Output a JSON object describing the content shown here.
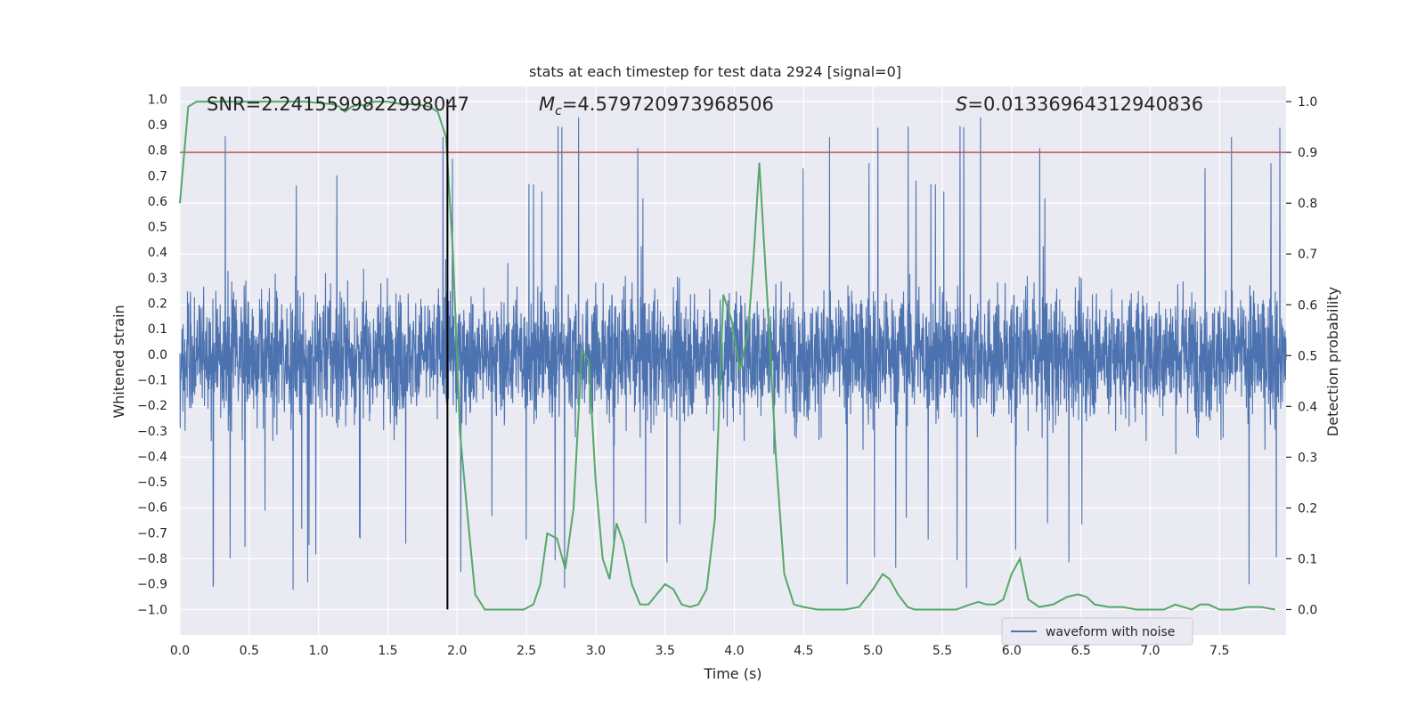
{
  "chart_data": {
    "type": "line",
    "title": "stats at each timestep for test data 2924 [signal=0]",
    "xlabel": "Time (s)",
    "ylabel_left": "Whitened strain",
    "ylabel_right": "Detection probability",
    "xlim": [
      0.0,
      7.98
    ],
    "ylim_left": [
      -1.1,
      1.05
    ],
    "ylim_right": [
      -0.05,
      1.03
    ],
    "x_ticks": [
      "0.0",
      "0.5",
      "1.0",
      "1.5",
      "2.0",
      "2.5",
      "3.0",
      "3.5",
      "4.0",
      "4.5",
      "5.0",
      "5.5",
      "6.0",
      "6.5",
      "7.0",
      "7.5"
    ],
    "x_tick_values": [
      0.0,
      0.5,
      1.0,
      1.5,
      2.0,
      2.5,
      3.0,
      3.5,
      4.0,
      4.5,
      5.0,
      5.5,
      6.0,
      6.5,
      7.0,
      7.5
    ],
    "y_left_ticks": [
      "1.0",
      "0.9",
      "0.8",
      "0.7",
      "0.6",
      "0.5",
      "0.4",
      "0.3",
      "0.2",
      "0.1",
      "0.0",
      "−0.1",
      "−0.2",
      "−0.3",
      "−0.4",
      "−0.5",
      "−0.6",
      "−0.7",
      "−0.8",
      "−0.9",
      "−1.0"
    ],
    "y_left_tick_values": [
      1.0,
      0.9,
      0.8,
      0.7,
      0.6,
      0.5,
      0.4,
      0.3,
      0.2,
      0.1,
      0.0,
      -0.1,
      -0.2,
      -0.3,
      -0.4,
      -0.5,
      -0.6,
      -0.7,
      -0.8,
      -0.9,
      -1.0
    ],
    "y_right_ticks": [
      "1.0",
      "0.9",
      "0.8",
      "0.7",
      "0.6",
      "0.5",
      "0.4",
      "0.3",
      "0.2",
      "0.1",
      "0.0"
    ],
    "y_right_tick_values": [
      1.0,
      0.9,
      0.8,
      0.7,
      0.6,
      0.5,
      0.4,
      0.3,
      0.2,
      0.1,
      0.0
    ],
    "annotations": {
      "snr": "SNR=2.2415599822998047",
      "mc_symbol": "M",
      "mc_subscript": "c",
      "mc_value": "=4.579720973968506",
      "s_symbol": "S",
      "s_value": "=0.01336964312940836"
    },
    "threshold_right": 0.9,
    "vline_x": 1.93,
    "waveform": {
      "name": "waveform with noise",
      "color": "#4c72b0",
      "typical_amplitude": 0.38,
      "max_peak": 0.98,
      "min_peak": -1.0
    },
    "probability": {
      "color": "#55a868",
      "x": [
        0.0,
        0.06,
        0.12,
        0.2,
        0.3,
        0.5,
        0.7,
        0.9,
        1.1,
        1.15,
        1.19,
        1.24,
        1.3,
        1.34,
        1.4,
        1.5,
        1.6,
        1.7,
        1.8,
        1.86,
        1.92,
        1.97,
        2.02,
        2.07,
        2.13,
        2.2,
        2.27,
        2.35,
        2.42,
        2.48,
        2.55,
        2.6,
        2.65,
        2.72,
        2.78,
        2.84,
        2.9,
        2.95,
        3.0,
        3.05,
        3.1,
        3.15,
        3.2,
        3.26,
        3.32,
        3.38,
        3.44,
        3.5,
        3.56,
        3.62,
        3.68,
        3.74,
        3.8,
        3.86,
        3.92,
        3.98,
        4.04,
        4.1,
        4.14,
        4.18,
        4.24,
        4.3,
        4.36,
        4.43,
        4.5,
        4.6,
        4.7,
        4.8,
        4.9,
        5.0,
        5.07,
        5.12,
        5.18,
        5.25,
        5.3,
        5.4,
        5.5,
        5.6,
        5.7,
        5.76,
        5.82,
        5.88,
        5.94,
        6.0,
        6.06,
        6.12,
        6.2,
        6.3,
        6.4,
        6.48,
        6.54,
        6.6,
        6.7,
        6.8,
        6.9,
        7.0,
        7.1,
        7.18,
        7.24,
        7.3,
        7.36,
        7.42,
        7.5,
        7.6,
        7.7,
        7.8,
        7.9
      ],
      "y": [
        0.8,
        0.99,
        1.0,
        1.0,
        1.0,
        1.0,
        1.0,
        1.0,
        0.995,
        0.99,
        0.98,
        0.99,
        0.995,
        0.99,
        1.0,
        1.0,
        0.995,
        0.995,
        0.99,
        0.98,
        0.93,
        0.7,
        0.35,
        0.2,
        0.03,
        0.0,
        0.0,
        0.0,
        0.0,
        0.0,
        0.01,
        0.05,
        0.15,
        0.14,
        0.08,
        0.2,
        0.51,
        0.49,
        0.25,
        0.1,
        0.06,
        0.17,
        0.13,
        0.05,
        0.01,
        0.01,
        0.03,
        0.05,
        0.04,
        0.01,
        0.005,
        0.01,
        0.04,
        0.18,
        0.62,
        0.57,
        0.47,
        0.55,
        0.7,
        0.88,
        0.6,
        0.3,
        0.07,
        0.01,
        0.005,
        0.0,
        0.0,
        0.0,
        0.005,
        0.04,
        0.07,
        0.06,
        0.03,
        0.005,
        0.0,
        0.0,
        0.0,
        0.0,
        0.01,
        0.015,
        0.01,
        0.01,
        0.02,
        0.07,
        0.1,
        0.02,
        0.005,
        0.01,
        0.025,
        0.03,
        0.025,
        0.01,
        0.005,
        0.005,
        0.0,
        0.0,
        0.0,
        0.01,
        0.005,
        0.0,
        0.01,
        0.01,
        0.0,
        0.0,
        0.005,
        0.005,
        0.0
      ]
    },
    "legend": {
      "entries": [
        "waveform with noise"
      ],
      "location": "lower-right"
    },
    "colors": {
      "background": "#eaeaf2",
      "grid": "#ffffff",
      "threshold": "#c44e52",
      "vline": "#000000",
      "text": "#262626"
    }
  }
}
